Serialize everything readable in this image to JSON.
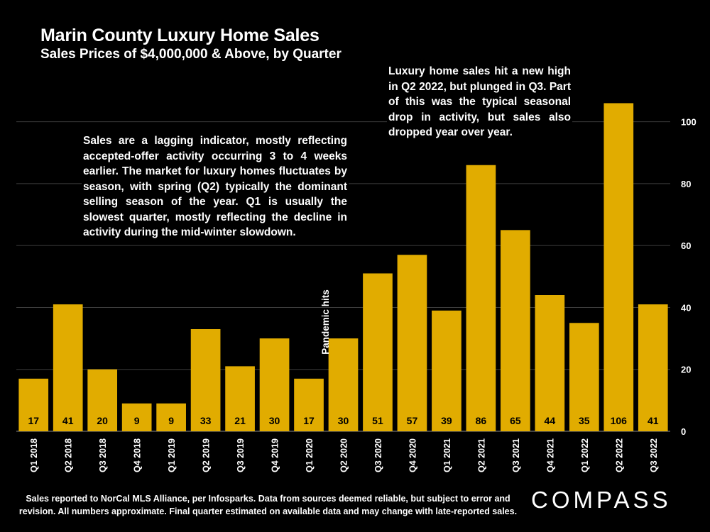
{
  "chart_data": {
    "type": "bar",
    "title": "Marin County Luxury Home Sales",
    "subtitle": "Sales Prices of $4,000,000 & Above, by Quarter",
    "categories": [
      "Q1 2018",
      "Q2 2018",
      "Q3 2018",
      "Q4 2018",
      "Q1 2019",
      "Q2 2019",
      "Q3 2019",
      "Q4 2019",
      "Q1 2020",
      "Q2 2020",
      "Q3 2020",
      "Q4 2020",
      "Q1 2021",
      "Q2 2021",
      "Q3 2021",
      "Q4 2021",
      "Q1 2022",
      "Q2 2022",
      "Q3 2022"
    ],
    "values": [
      17,
      41,
      20,
      9,
      9,
      33,
      21,
      30,
      17,
      30,
      51,
      57,
      39,
      86,
      65,
      44,
      35,
      106,
      41
    ],
    "xlabel": "",
    "ylabel": "",
    "ylim": [
      0,
      110
    ],
    "yticks": [
      0,
      20,
      40,
      60,
      80,
      100
    ],
    "grid": true,
    "bar_color": "#e1ac00",
    "label_color": "#000000",
    "annotations": {
      "pandemic": "Pandemic hits",
      "left_note": "Sales are a lagging indicator, mostly reflecting accepted-offer activity occurring 3 to 4 weeks earlier. The market for luxury homes fluctuates by season, with spring (Q2) typically the dominant selling season of the year. Q1 is usually the slowest quarter, mostly reflecting the decline in activity during the mid-winter slowdown.",
      "right_note": "Luxury home sales hit a new high in Q2 2022, but plunged in Q3. Part of this was the typical seasonal drop in activity, but sales also dropped year over year."
    }
  },
  "footnote": "Sales reported to NorCal MLS Alliance, per Infosparks. Data from sources deemed reliable, but subject to error and revision. All numbers approximate. Final quarter estimated on available data and may change with late-reported sales.",
  "brand": "COMPASS"
}
